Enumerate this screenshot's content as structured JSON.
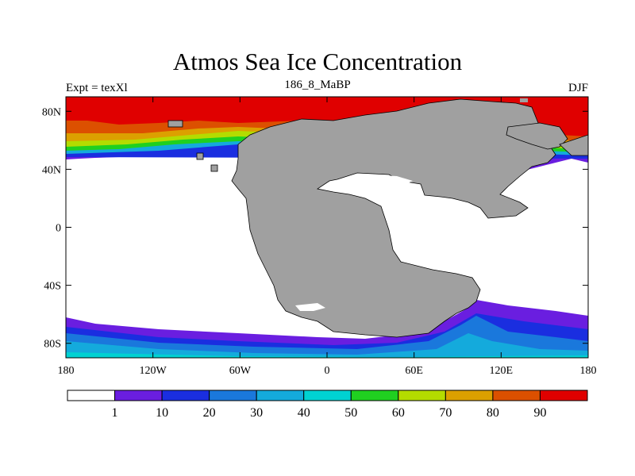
{
  "title": "Atmos Sea Ice Concentration",
  "subtitle_left": "Expt = texXl",
  "subtitle_center": "186_8_MaBP",
  "subtitle_right": "DJF",
  "lat_ticks": [
    {
      "value": 80,
      "label": "80N"
    },
    {
      "value": 40,
      "label": "40N"
    },
    {
      "value": 0,
      "label": "0"
    },
    {
      "value": -40,
      "label": "40S"
    },
    {
      "value": -80,
      "label": "80S"
    }
  ],
  "lon_ticks": [
    {
      "value": -180,
      "label": "180"
    },
    {
      "value": -120,
      "label": "120W"
    },
    {
      "value": -60,
      "label": "60W"
    },
    {
      "value": 0,
      "label": "0"
    },
    {
      "value": 60,
      "label": "60E"
    },
    {
      "value": 120,
      "label": "120E"
    },
    {
      "value": 180,
      "label": "180"
    }
  ],
  "colorbar": {
    "labels": [
      "1",
      "10",
      "20",
      "30",
      "40",
      "50",
      "60",
      "70",
      "80",
      "90"
    ],
    "colors": [
      "#ffffff",
      "#6a1ee0",
      "#1a2ee0",
      "#1a78dc",
      "#14aadc",
      "#00d2d2",
      "#20d020",
      "#b4dc00",
      "#dca000",
      "#dc5000",
      "#e00000"
    ]
  },
  "colors": {
    "land": "#a0a0a0",
    "ice_high": "#e00000"
  }
}
